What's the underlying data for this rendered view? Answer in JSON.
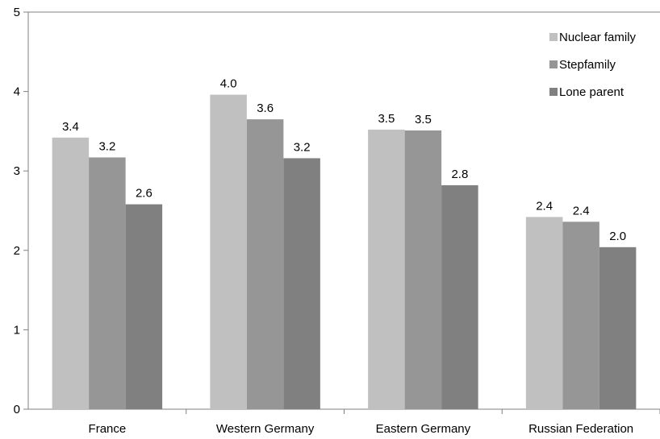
{
  "chart_data": {
    "type": "bar",
    "categories": [
      "France",
      "Western Germany",
      "Eastern Germany",
      "Russian Federation"
    ],
    "series": [
      {
        "name": "Nuclear family",
        "values": [
          3.42,
          3.96,
          3.52,
          2.42
        ],
        "labels": [
          "3.4",
          "4.0",
          "3.5",
          "2.4"
        ],
        "color": "#c0c0c0"
      },
      {
        "name": "Stepfamily",
        "values": [
          3.17,
          3.65,
          3.51,
          2.36
        ],
        "labels": [
          "3.2",
          "3.6",
          "3.5",
          "2.4"
        ],
        "color": "#969696"
      },
      {
        "name": "Lone parent",
        "values": [
          2.58,
          3.16,
          2.82,
          2.04
        ],
        "labels": [
          "2.6",
          "3.2",
          "2.8",
          "2.0"
        ],
        "color": "#808080"
      }
    ],
    "title": "",
    "xlabel": "",
    "ylabel": "",
    "ylim": [
      0,
      5
    ],
    "yticks": [
      "0",
      "1",
      "2",
      "3",
      "4",
      "5"
    ],
    "grid": false,
    "legend_position": "top-right"
  }
}
